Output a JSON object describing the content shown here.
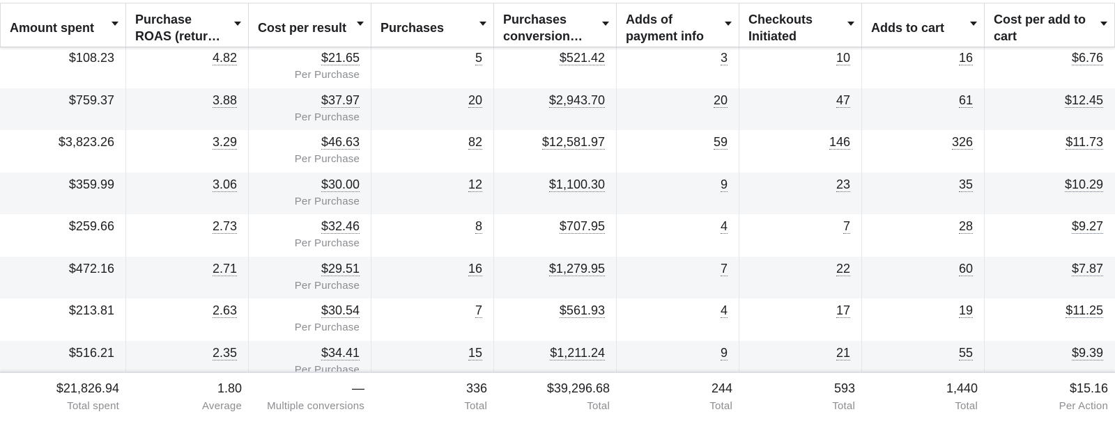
{
  "columns": [
    {
      "label": "Amount spent"
    },
    {
      "label": "Purchase ROAS (retur…"
    },
    {
      "label": "Cost per result"
    },
    {
      "label": "Purchases"
    },
    {
      "label": "Purchases conversion…"
    },
    {
      "label": "Adds of payment info"
    },
    {
      "label": "Checkouts Initiated"
    },
    {
      "label": "Adds to cart"
    },
    {
      "label": "Cost per add to cart"
    }
  ],
  "result_sublabel": "Per Purchase",
  "rows": [
    {
      "amount_spent": "$108.23",
      "roas": "4.82",
      "cost_per_result": "$21.65",
      "purchases": "5",
      "conversion_value": "$521.42",
      "payment_info": "3",
      "checkouts": "10",
      "adds_to_cart": "16",
      "cost_per_add": "$6.76"
    },
    {
      "amount_spent": "$759.37",
      "roas": "3.88",
      "cost_per_result": "$37.97",
      "purchases": "20",
      "conversion_value": "$2,943.70",
      "payment_info": "20",
      "checkouts": "47",
      "adds_to_cart": "61",
      "cost_per_add": "$12.45"
    },
    {
      "amount_spent": "$3,823.26",
      "roas": "3.29",
      "cost_per_result": "$46.63",
      "purchases": "82",
      "conversion_value": "$12,581.97",
      "payment_info": "59",
      "checkouts": "146",
      "adds_to_cart": "326",
      "cost_per_add": "$11.73"
    },
    {
      "amount_spent": "$359.99",
      "roas": "3.06",
      "cost_per_result": "$30.00",
      "purchases": "12",
      "conversion_value": "$1,100.30",
      "payment_info": "9",
      "checkouts": "23",
      "adds_to_cart": "35",
      "cost_per_add": "$10.29"
    },
    {
      "amount_spent": "$259.66",
      "roas": "2.73",
      "cost_per_result": "$32.46",
      "purchases": "8",
      "conversion_value": "$707.95",
      "payment_info": "4",
      "checkouts": "7",
      "adds_to_cart": "28",
      "cost_per_add": "$9.27"
    },
    {
      "amount_spent": "$472.16",
      "roas": "2.71",
      "cost_per_result": "$29.51",
      "purchases": "16",
      "conversion_value": "$1,279.95",
      "payment_info": "7",
      "checkouts": "22",
      "adds_to_cart": "60",
      "cost_per_add": "$7.87"
    },
    {
      "amount_spent": "$213.81",
      "roas": "2.63",
      "cost_per_result": "$30.54",
      "purchases": "7",
      "conversion_value": "$561.93",
      "payment_info": "4",
      "checkouts": "17",
      "adds_to_cart": "19",
      "cost_per_add": "$11.25"
    },
    {
      "amount_spent": "$516.21",
      "roas": "2.35",
      "cost_per_result": "$34.41",
      "purchases": "15",
      "conversion_value": "$1,211.24",
      "payment_info": "9",
      "checkouts": "21",
      "adds_to_cart": "55",
      "cost_per_add": "$9.39"
    }
  ],
  "totals": [
    {
      "value": "$21,826.94",
      "label": "Total spent"
    },
    {
      "value": "1.80",
      "label": "Average"
    },
    {
      "value": "—",
      "label": "Multiple conversions"
    },
    {
      "value": "336",
      "label": "Total"
    },
    {
      "value": "$39,296.68",
      "label": "Total"
    },
    {
      "value": "244",
      "label": "Total"
    },
    {
      "value": "593",
      "label": "Total"
    },
    {
      "value": "1,440",
      "label": "Total"
    },
    {
      "value": "$15.16",
      "label": "Per Action"
    }
  ]
}
